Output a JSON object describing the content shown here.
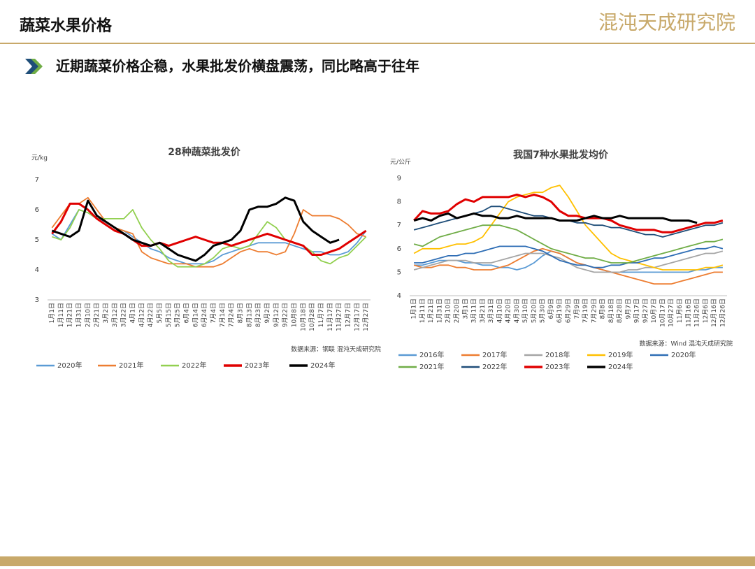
{
  "header": {
    "title": "蔬菜水果价格",
    "logo": "混沌天成研究院"
  },
  "subtitle": "近期蔬菜价格企稳，水果批发价横盘震荡，同比略高于往年",
  "chart_data": [
    {
      "type": "line",
      "title": "28种蔬菜批发价",
      "y_label": "元/kg",
      "source": "数据来源：钢联  混沌天成研究院",
      "categories": [
        "1月1日",
        "1月11日",
        "1月21日",
        "1月31日",
        "2月10日",
        "2月21日",
        "3月2日",
        "3月12日",
        "3月22日",
        "4月1日",
        "4月12日",
        "4月22日",
        "5月5日",
        "5月15日",
        "5月25日",
        "6月4日",
        "6月14日",
        "6月24日",
        "7月4日",
        "7月14日",
        "7月24日",
        "8月3日",
        "8月13日",
        "8月23日",
        "9月2日",
        "9月12日",
        "9月22日",
        "10月8日",
        "10月18日",
        "10月28日",
        "11月7日",
        "11月17日",
        "11月27日",
        "12月7日",
        "12月17日",
        "12月27日"
      ],
      "ylim": [
        3,
        7
      ],
      "yticks": [
        3,
        4,
        5,
        6,
        7
      ],
      "series": [
        {
          "name": "2020年",
          "color": "#5b9bd5",
          "values": [
            5.2,
            5.0,
            5.5,
            6.0,
            5.9,
            5.7,
            5.6,
            5.4,
            5.3,
            5.1,
            4.9,
            4.7,
            4.6,
            4.4,
            4.3,
            4.2,
            4.2,
            4.2,
            4.3,
            4.5,
            4.6,
            4.7,
            4.8,
            4.9,
            4.9,
            4.9,
            4.9,
            4.8,
            4.7,
            4.6,
            4.6,
            4.5,
            4.5,
            4.6,
            4.9,
            5.3
          ]
        },
        {
          "name": "2021年",
          "color": "#ed7d31",
          "values": [
            5.4,
            5.8,
            6.2,
            6.2,
            6.4,
            6.0,
            5.6,
            5.4,
            5.3,
            5.2,
            4.6,
            4.4,
            4.3,
            4.2,
            4.2,
            4.2,
            4.1,
            4.1,
            4.1,
            4.2,
            4.4,
            4.6,
            4.7,
            4.6,
            4.6,
            4.5,
            4.6,
            5.2,
            6.0,
            5.8,
            5.8,
            5.8,
            5.7,
            5.5,
            5.2,
            5.1
          ]
        },
        {
          "name": "2022年",
          "color": "#92d050",
          "values": [
            5.1,
            5.0,
            5.4,
            6.0,
            5.9,
            5.7,
            5.7,
            5.7,
            5.7,
            6.0,
            5.4,
            5.0,
            4.7,
            4.3,
            4.1,
            4.1,
            4.1,
            4.2,
            4.4,
            4.7,
            4.8,
            4.7,
            4.8,
            5.2,
            5.6,
            5.4,
            5.0,
            4.9,
            4.8,
            4.6,
            4.3,
            4.2,
            4.4,
            4.5,
            4.8,
            5.1
          ]
        },
        {
          "name": "2023年",
          "color": "#e00000",
          "values": [
            5.2,
            5.6,
            6.2,
            6.2,
            6.0,
            5.7,
            5.5,
            5.3,
            5.2,
            5.0,
            4.8,
            4.8,
            4.9,
            4.8,
            4.9,
            5.0,
            5.1,
            5.0,
            4.9,
            4.9,
            4.8,
            4.9,
            5.0,
            5.1,
            5.2,
            5.1,
            5.0,
            4.9,
            4.8,
            4.5,
            4.5,
            4.6,
            4.7,
            4.9,
            5.1,
            5.3
          ]
        },
        {
          "name": "2024年",
          "color": "#000000",
          "values": [
            5.3,
            5.2,
            5.1,
            5.3,
            6.3,
            5.8,
            5.6,
            5.4,
            5.2,
            5.0,
            4.9,
            4.8,
            4.9,
            4.7,
            4.5,
            4.4,
            4.3,
            4.5,
            4.8,
            4.9,
            5.0,
            5.3,
            6.0,
            6.1,
            6.1,
            6.2,
            6.4,
            6.3,
            5.6,
            5.3,
            5.1,
            4.9,
            5.0,
            null,
            null,
            null
          ]
        }
      ]
    },
    {
      "type": "line",
      "title": "我国7种水果批发均价",
      "y_label": "元/公斤",
      "source": "数据来源：Wind  混沌天成研究院",
      "categories": [
        "1月1日",
        "1月11日",
        "1月21日",
        "1月31日",
        "2月10日",
        "2月20日",
        "3月1日",
        "3月11日",
        "3月21日",
        "3月31日",
        "4月10日",
        "4月20日",
        "4月30日",
        "5月10日",
        "5月20日",
        "5月30日",
        "6月9日",
        "6月19日",
        "6月29日",
        "7月9日",
        "7月19日",
        "7月29日",
        "8月8日",
        "8月18日",
        "8月28日",
        "9月7日",
        "9月17日",
        "9月27日",
        "10月7日",
        "10月17日",
        "10月27日",
        "11月6日",
        "11月16日",
        "11月26日",
        "12月6日",
        "12月16日",
        "12月26日"
      ],
      "ylim": [
        4,
        9
      ],
      "yticks": [
        4,
        5,
        6,
        7,
        8,
        9
      ],
      "series": [
        {
          "name": "2016年",
          "color": "#5b9bd5",
          "values": [
            5.3,
            5.3,
            5.4,
            5.5,
            5.5,
            5.5,
            5.4,
            5.4,
            5.3,
            5.3,
            5.2,
            5.2,
            5.1,
            5.2,
            5.4,
            5.7,
            5.9,
            5.8,
            5.6,
            5.4,
            5.3,
            5.2,
            5.1,
            5.0,
            5.0,
            5.0,
            5.0,
            5.0,
            5.0,
            5.0,
            5.0,
            5.0,
            5.0,
            5.1,
            5.1,
            5.2,
            5.2
          ]
        },
        {
          "name": "2017年",
          "color": "#ed7d31",
          "values": [
            5.3,
            5.2,
            5.2,
            5.3,
            5.3,
            5.2,
            5.2,
            5.1,
            5.1,
            5.1,
            5.2,
            5.3,
            5.5,
            5.7,
            5.9,
            6.0,
            5.9,
            5.8,
            5.6,
            5.4,
            5.3,
            5.2,
            5.1,
            5.0,
            4.9,
            4.8,
            4.7,
            4.6,
            4.5,
            4.5,
            4.5,
            4.6,
            4.7,
            4.8,
            4.9,
            5.0,
            5.0
          ]
        },
        {
          "name": "2018年",
          "color": "#a5a5a5",
          "values": [
            5.1,
            5.2,
            5.3,
            5.4,
            5.5,
            5.5,
            5.5,
            5.4,
            5.4,
            5.4,
            5.5,
            5.6,
            5.7,
            5.8,
            5.8,
            5.8,
            5.7,
            5.6,
            5.4,
            5.2,
            5.1,
            5.0,
            5.0,
            5.0,
            5.0,
            5.1,
            5.1,
            5.2,
            5.2,
            5.3,
            5.4,
            5.5,
            5.6,
            5.7,
            5.8,
            5.8,
            5.9
          ]
        },
        {
          "name": "2019年",
          "color": "#ffc000",
          "values": [
            5.8,
            6.0,
            6.0,
            6.0,
            6.1,
            6.2,
            6.2,
            6.3,
            6.5,
            7.0,
            7.5,
            8.0,
            8.2,
            8.3,
            8.4,
            8.4,
            8.6,
            8.7,
            8.2,
            7.6,
            7.0,
            6.6,
            6.2,
            5.8,
            5.6,
            5.5,
            5.4,
            5.3,
            5.2,
            5.1,
            5.1,
            5.1,
            5.1,
            5.1,
            5.2,
            5.2,
            5.3
          ]
        },
        {
          "name": "2020年",
          "color": "#2f6eb5",
          "values": [
            5.4,
            5.4,
            5.5,
            5.6,
            5.7,
            5.7,
            5.8,
            5.8,
            5.9,
            6.0,
            6.1,
            6.1,
            6.1,
            6.1,
            6.0,
            5.9,
            5.7,
            5.5,
            5.4,
            5.3,
            5.3,
            5.2,
            5.2,
            5.3,
            5.3,
            5.4,
            5.4,
            5.5,
            5.6,
            5.6,
            5.7,
            5.8,
            5.9,
            6.0,
            6.0,
            6.1,
            6.0
          ]
        },
        {
          "name": "2021年",
          "color": "#70ad47",
          "values": [
            6.2,
            6.1,
            6.3,
            6.5,
            6.6,
            6.7,
            6.8,
            6.9,
            7.0,
            7.0,
            7.0,
            6.9,
            6.8,
            6.6,
            6.4,
            6.2,
            6.0,
            5.9,
            5.8,
            5.7,
            5.6,
            5.6,
            5.5,
            5.4,
            5.4,
            5.4,
            5.5,
            5.6,
            5.7,
            5.8,
            5.9,
            6.0,
            6.1,
            6.2,
            6.3,
            6.3,
            6.4
          ]
        },
        {
          "name": "2022年",
          "color": "#1f4e79",
          "values": [
            6.8,
            6.9,
            7.0,
            7.1,
            7.2,
            7.3,
            7.4,
            7.5,
            7.6,
            7.8,
            7.8,
            7.7,
            7.6,
            7.5,
            7.4,
            7.4,
            7.3,
            7.2,
            7.2,
            7.1,
            7.1,
            7.0,
            7.0,
            6.9,
            6.9,
            6.8,
            6.7,
            6.6,
            6.6,
            6.5,
            6.6,
            6.7,
            6.8,
            6.9,
            7.0,
            7.0,
            7.1
          ]
        },
        {
          "name": "2023年",
          "color": "#e00000",
          "values": [
            7.2,
            7.6,
            7.5,
            7.5,
            7.6,
            7.9,
            8.1,
            8.0,
            8.2,
            8.2,
            8.2,
            8.2,
            8.3,
            8.2,
            8.3,
            8.2,
            8.0,
            7.6,
            7.4,
            7.4,
            7.3,
            7.3,
            7.3,
            7.2,
            7.0,
            6.9,
            6.8,
            6.8,
            6.8,
            6.7,
            6.7,
            6.8,
            6.9,
            7.0,
            7.1,
            7.1,
            7.2
          ]
        },
        {
          "name": "2024年",
          "color": "#000000",
          "values": [
            7.2,
            7.3,
            7.2,
            7.4,
            7.5,
            7.3,
            7.4,
            7.5,
            7.4,
            7.4,
            7.3,
            7.3,
            7.4,
            7.3,
            7.3,
            7.3,
            7.3,
            7.2,
            7.2,
            7.2,
            7.3,
            7.4,
            7.3,
            7.3,
            7.4,
            7.3,
            7.3,
            7.3,
            7.3,
            7.3,
            7.2,
            7.2,
            7.2,
            7.1,
            null,
            null,
            null
          ]
        }
      ]
    }
  ]
}
